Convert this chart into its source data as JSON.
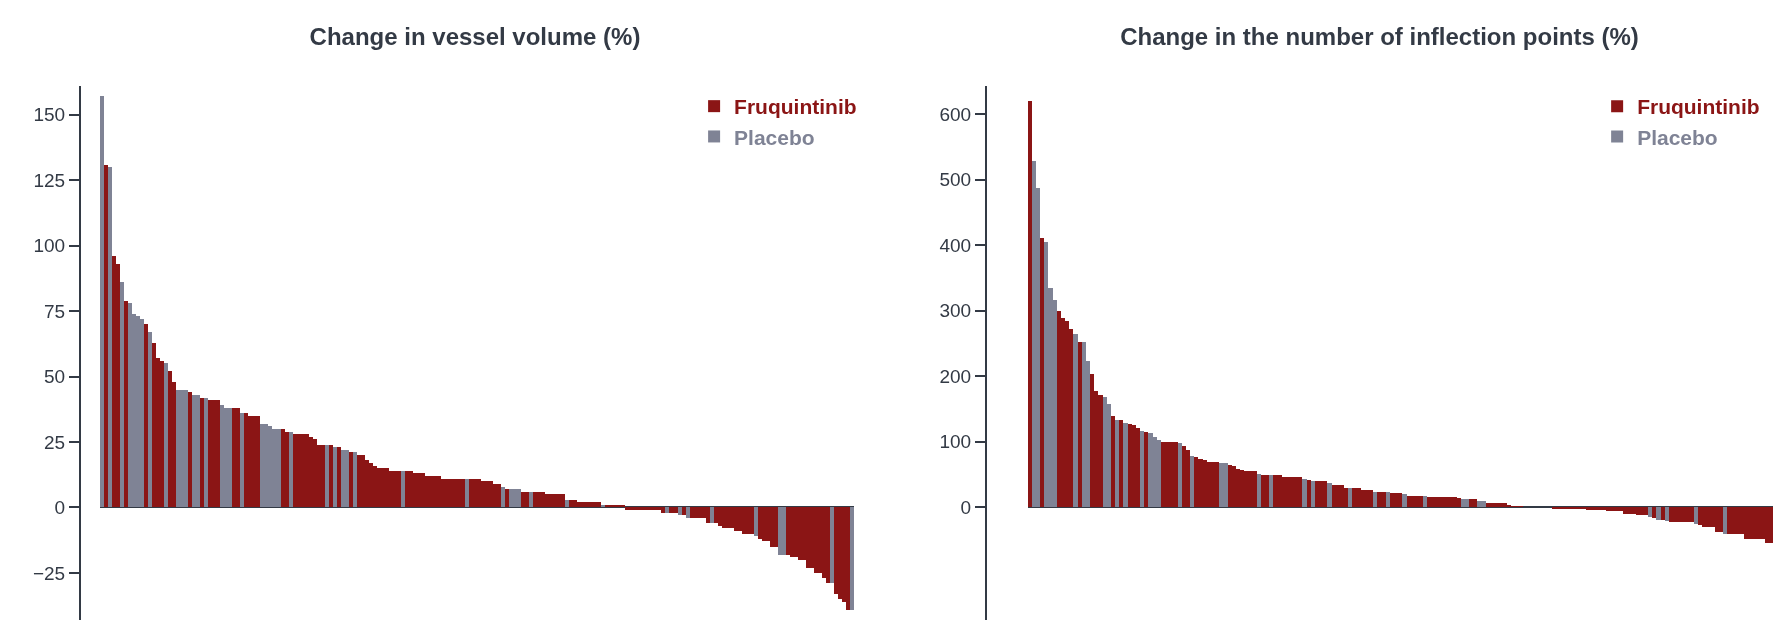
{
  "chart_data": [
    {
      "type": "bar",
      "title": "Change in vessel volume (%)",
      "categories": [
        null,
        null,
        null,
        null,
        null,
        null,
        null,
        null,
        null,
        null,
        null,
        null,
        null,
        null,
        null,
        null,
        null,
        null,
        null,
        null,
        null,
        null,
        null,
        null,
        null,
        null,
        null,
        null,
        null,
        null,
        null,
        null,
        null,
        null,
        null,
        null,
        null,
        null,
        null,
        null,
        null,
        null,
        null,
        null,
        null,
        null,
        null,
        null,
        null,
        null,
        null,
        null,
        null,
        null,
        null,
        null,
        null,
        null,
        null,
        null,
        null,
        null,
        null,
        null,
        null,
        null,
        null,
        null,
        null,
        null,
        null,
        null,
        null,
        null,
        null,
        null,
        null,
        null,
        null,
        null,
        null,
        null,
        null,
        null,
        null,
        null,
        null,
        null,
        null,
        null,
        null,
        null,
        null,
        null,
        null,
        null,
        null,
        null,
        null,
        null,
        null,
        null,
        null,
        null,
        null,
        null,
        null,
        null,
        null,
        null,
        null,
        null,
        null,
        null,
        null,
        null,
        null,
        null,
        null,
        null,
        null,
        null,
        null,
        null,
        null,
        null,
        null,
        null,
        null,
        null,
        null,
        null,
        null,
        null,
        null,
        null,
        null,
        null,
        null,
        null,
        null,
        null,
        null,
        null,
        null,
        null,
        null,
        null,
        null,
        null,
        null,
        null,
        null,
        null,
        null,
        null,
        null,
        null,
        null,
        null,
        null,
        null,
        null,
        null,
        null,
        null,
        null,
        null,
        null,
        null,
        null,
        null,
        null,
        null,
        null,
        null,
        null,
        null,
        null,
        null,
        null,
        null,
        null,
        null,
        null,
        null,
        null,
        null
      ],
      "series": [
        {
          "name": "Fruquintinib",
          "color": "#8b1515",
          "values": [
            null,
            131,
            null,
            96,
            93,
            null,
            79,
            null,
            null,
            null,
            null,
            70,
            null,
            63,
            57,
            56,
            null,
            52,
            48,
            null,
            null,
            null,
            44,
            null,
            null,
            42,
            null,
            41,
            41,
            41,
            null,
            null,
            null,
            38,
            38,
            null,
            36,
            35,
            35,
            35,
            null,
            null,
            null,
            null,
            null,
            30,
            29,
            null,
            28,
            28,
            28,
            28,
            27,
            26,
            24,
            24,
            null,
            24,
            null,
            23,
            null,
            null,
            21,
            null,
            20,
            20,
            18,
            17,
            16,
            15,
            15,
            15,
            14,
            14,
            14,
            null,
            14,
            14,
            13,
            13,
            13,
            12,
            12,
            12,
            12,
            11,
            11,
            11,
            11,
            11,
            11,
            null,
            11,
            11,
            11,
            10,
            10,
            10,
            9,
            9,
            null,
            7,
            null,
            null,
            null,
            6,
            6,
            null,
            6,
            6,
            6,
            5,
            5,
            5,
            5,
            5,
            null,
            3,
            3,
            2,
            2,
            2,
            2,
            2,
            2,
            null,
            1,
            1,
            1,
            1,
            1,
            -1,
            -1,
            -1,
            -1,
            -1,
            -1,
            -1,
            -1,
            -1,
            -2,
            null,
            -2,
            -2,
            null,
            -3,
            null,
            -4,
            -4,
            -4,
            -4,
            -6,
            null,
            -6,
            -7,
            -8,
            -8,
            -8,
            -9,
            -9,
            -10,
            -10,
            -10,
            null,
            -12,
            -13,
            -13,
            -15,
            -15,
            null,
            null,
            -18,
            -19,
            -19,
            -20,
            -20,
            -23,
            -23,
            -25,
            -25,
            -27,
            -29,
            null,
            -33,
            -35,
            -36,
            -39,
            null
          ]
        },
        {
          "name": "Placebo",
          "color": "#7f8395",
          "values": [
            157,
            null,
            130,
            null,
            null,
            86,
            null,
            78,
            74,
            73,
            72,
            null,
            67,
            null,
            null,
            null,
            55,
            null,
            null,
            45,
            45,
            45,
            null,
            43,
            43,
            null,
            42,
            null,
            null,
            null,
            39,
            38,
            38,
            null,
            null,
            36,
            null,
            null,
            null,
            null,
            32,
            32,
            31,
            30,
            30,
            null,
            null,
            29,
            null,
            null,
            null,
            null,
            null,
            null,
            null,
            null,
            24,
            null,
            23,
            null,
            22,
            22,
            null,
            21,
            null,
            null,
            null,
            null,
            null,
            null,
            null,
            null,
            null,
            null,
            null,
            14,
            null,
            null,
            null,
            null,
            null,
            null,
            null,
            null,
            null,
            null,
            null,
            null,
            null,
            null,
            null,
            11,
            null,
            null,
            null,
            null,
            null,
            null,
            null,
            null,
            8,
            null,
            7,
            7,
            7,
            null,
            null,
            6,
            null,
            null,
            null,
            null,
            null,
            null,
            null,
            null,
            3,
            null,
            null,
            null,
            null,
            null,
            null,
            null,
            null,
            1,
            null,
            null,
            null,
            null,
            null,
            null,
            null,
            null,
            null,
            null,
            null,
            null,
            null,
            null,
            null,
            -2,
            null,
            null,
            -3,
            null,
            -4,
            null,
            null,
            null,
            null,
            null,
            -6,
            null,
            null,
            null,
            null,
            null,
            null,
            null,
            null,
            null,
            null,
            -11,
            null,
            null,
            null,
            null,
            null,
            -18,
            -18,
            null,
            null,
            null,
            null,
            null,
            null,
            null,
            null,
            null,
            null,
            null,
            -29,
            null,
            null,
            null,
            null,
            -39
          ]
        }
      ],
      "ylim": [
        -43,
        161
      ],
      "yticks": [
        {
          "value": -25,
          "label": "−25"
        },
        0,
        25,
        50,
        75,
        100,
        125,
        150
      ],
      "tick_labels": "y",
      "legend": "top right"
    },
    {
      "type": "bar",
      "title": "Change in the number of inflection points (%)",
      "categories": [
        null,
        null,
        null,
        null,
        null,
        null,
        null,
        null,
        null,
        null,
        null,
        null,
        null,
        null,
        null,
        null,
        null,
        null,
        null,
        null,
        null,
        null,
        null,
        null,
        null,
        null,
        null,
        null,
        null,
        null,
        null,
        null,
        null,
        null,
        null,
        null,
        null,
        null,
        null,
        null,
        null,
        null,
        null,
        null,
        null,
        null,
        null,
        null,
        null,
        null,
        null,
        null,
        null,
        null,
        null,
        null,
        null,
        null,
        null,
        null,
        null,
        null,
        null,
        null,
        null,
        null,
        null,
        null,
        null,
        null,
        null,
        null,
        null,
        null,
        null,
        null,
        null,
        null,
        null,
        null,
        null,
        null,
        null,
        null,
        null,
        null,
        null,
        null,
        null,
        null,
        null,
        null,
        null,
        null,
        null,
        null,
        null,
        null,
        null,
        null,
        null,
        null,
        null,
        null,
        null,
        null,
        null,
        null,
        null,
        null,
        null,
        null,
        null,
        null,
        null,
        null,
        null,
        null,
        null,
        null,
        null,
        null,
        null,
        null,
        null,
        null,
        null,
        null,
        null,
        null,
        null,
        null,
        null,
        null,
        null,
        null,
        null,
        null,
        null,
        null,
        null,
        null,
        null,
        null,
        null,
        null,
        null,
        null,
        null,
        null,
        null,
        null,
        null,
        null,
        null,
        null,
        null,
        null,
        null,
        null,
        null,
        null,
        null,
        null,
        null,
        null,
        null,
        null,
        null,
        null,
        null,
        null,
        null,
        null,
        null,
        null,
        null,
        null,
        null
      ],
      "series": [
        {
          "name": "Fruquintinib",
          "color": "#8b1515",
          "values": [
            620,
            null,
            null,
            411,
            null,
            null,
            null,
            299,
            289,
            284,
            272,
            null,
            252,
            null,
            null,
            203,
            177,
            172,
            null,
            null,
            139,
            null,
            133,
            null,
            127,
            125,
            121,
            null,
            115,
            null,
            null,
            null,
            100,
            100,
            100,
            100,
            null,
            94,
            88,
            null,
            77,
            73,
            72,
            69,
            69,
            69,
            null,
            null,
            64,
            63,
            59,
            57,
            55,
            55,
            55,
            null,
            50,
            50,
            null,
            49,
            49,
            47,
            47,
            46,
            46,
            46,
            null,
            41,
            null,
            40,
            40,
            40,
            null,
            34,
            34,
            34,
            29,
            null,
            29,
            29,
            27,
            27,
            27,
            null,
            24,
            24,
            null,
            22,
            22,
            22,
            null,
            18,
            18,
            18,
            18,
            null,
            16,
            16,
            16,
            16,
            16,
            16,
            16,
            14,
            null,
            null,
            12,
            12,
            null,
            null,
            6,
            6,
            6,
            6,
            6,
            4,
            2,
            2,
            2,
            1,
            1,
            1,
            1,
            1,
            1,
            1,
            -2,
            -2,
            -2,
            -2,
            -2,
            -3,
            -3,
            -3,
            -4,
            -4,
            -4,
            -4,
            -4,
            -6,
            -6,
            -6,
            -6,
            -10,
            -10,
            -10,
            -12,
            -12,
            -12,
            null,
            -16,
            null,
            -19,
            null,
            -22,
            -22,
            -22,
            -22,
            -22,
            -22,
            null,
            -27,
            -30,
            -30,
            -30,
            -37,
            -37,
            null,
            -40,
            -40,
            -40,
            -40,
            -48,
            -48,
            -48,
            -48,
            -48,
            -55,
            -55
          ]
        },
        {
          "name": "Placebo",
          "color": "#7f8395",
          "values": [
            null,
            528,
            487,
            null,
            405,
            334,
            316,
            null,
            null,
            null,
            null,
            264,
            null,
            252,
            223,
            null,
            null,
            null,
            169,
            158,
            null,
            134,
            null,
            129,
            null,
            null,
            null,
            117,
            null,
            113,
            108,
            102,
            null,
            null,
            null,
            null,
            98,
            null,
            null,
            79,
            null,
            null,
            null,
            null,
            null,
            null,
            67,
            67,
            null,
            null,
            null,
            null,
            null,
            null,
            null,
            51,
            null,
            null,
            49,
            null,
            null,
            null,
            null,
            null,
            null,
            null,
            43,
            null,
            40,
            null,
            null,
            null,
            37,
            null,
            null,
            null,
            null,
            29,
            null,
            null,
            null,
            null,
            null,
            24,
            null,
            null,
            24,
            null,
            null,
            null,
            20,
            null,
            null,
            null,
            null,
            18,
            null,
            null,
            null,
            null,
            null,
            null,
            null,
            null,
            13,
            13,
            null,
            null,
            10,
            10,
            null,
            null,
            null,
            null,
            null,
            null,
            null,
            null,
            null,
            null,
            null,
            null,
            null,
            null,
            null,
            null,
            null,
            null,
            null,
            null,
            null,
            null,
            null,
            null,
            null,
            null,
            null,
            null,
            null,
            null,
            null,
            null,
            null,
            null,
            null,
            null,
            null,
            null,
            null,
            -15,
            null,
            -19,
            null,
            -21,
            null,
            null,
            null,
            null,
            null,
            null,
            -25,
            null,
            null,
            null,
            null,
            null,
            null,
            -40,
            null,
            null,
            null,
            null,
            null,
            null,
            null,
            null,
            null,
            null,
            null
          ]
        }
      ],
      "ylim": [
        -172,
        643
      ],
      "yticks": [
        0,
        100,
        200,
        300,
        400,
        500,
        600
      ],
      "tick_labels": "y",
      "legend": "top right"
    }
  ]
}
